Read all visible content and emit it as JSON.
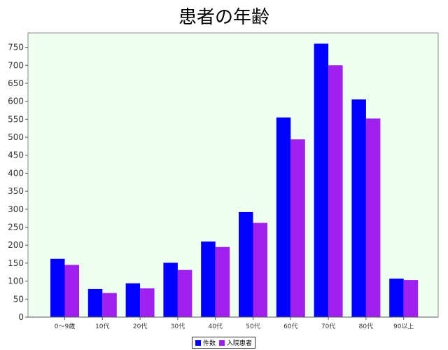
{
  "chart_data": {
    "type": "bar",
    "title": "患者の年齢",
    "categories": [
      "0〜9歳",
      "10代",
      "20代",
      "30代",
      "40代",
      "50代",
      "60代",
      "70代",
      "80代",
      "90以上"
    ],
    "series": [
      {
        "name": "件数",
        "color": "#0000ff",
        "values": [
          162,
          78,
          94,
          151,
          210,
          292,
          555,
          760,
          605,
          107
        ]
      },
      {
        "name": "入院患者",
        "color": "#a020f0",
        "values": [
          145,
          67,
          80,
          131,
          195,
          262,
          494,
          700,
          552,
          103
        ]
      }
    ],
    "ylim": [
      0,
      790
    ],
    "yticks": [
      0,
      50,
      100,
      150,
      200,
      250,
      300,
      350,
      400,
      450,
      500,
      550,
      600,
      650,
      700,
      750
    ],
    "xlabel": "",
    "ylabel": "",
    "legend": "bottom-center",
    "grid": false,
    "plot_background": "#effff0"
  }
}
